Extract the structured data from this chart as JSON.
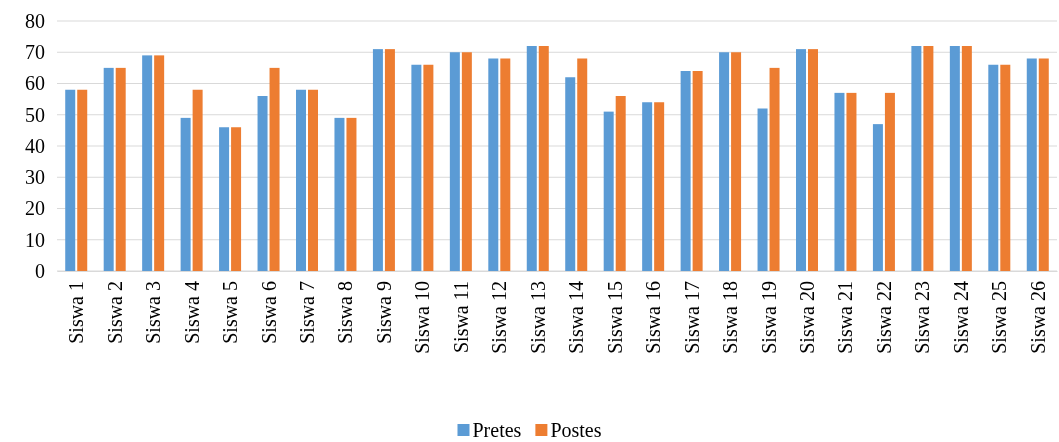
{
  "chart_data": {
    "type": "bar",
    "categories": [
      "Siswa 1",
      "Siswa 2",
      "Siswa 3",
      "Siswa 4",
      "Siswa 5",
      "Siswa 6",
      "Siswa 7",
      "Siswa 8",
      "Siswa 9",
      "Siswa 10",
      "Siswa 11",
      "Siswa 12",
      "Siswa 13",
      "Siswa 14",
      "Siswa 15",
      "Siswa 16",
      "Siswa 17",
      "Siswa 18",
      "Siswa 19",
      "Siswa 20",
      "Siswa 21",
      "Siswa 22",
      "Siswa 23",
      "Siswa 24",
      "Siswa 25",
      "Siswa 26"
    ],
    "series": [
      {
        "name": "Pretes",
        "color": "#5b9bd5",
        "values": [
          58,
          65,
          69,
          49,
          46,
          56,
          58,
          49,
          71,
          66,
          70,
          68,
          72,
          62,
          51,
          54,
          64,
          70,
          52,
          71,
          57,
          47,
          72,
          72,
          66,
          68
        ]
      },
      {
        "name": "Postes",
        "color": "#ed7d31",
        "values": [
          58,
          65,
          69,
          58,
          46,
          65,
          58,
          49,
          71,
          66,
          70,
          68,
          72,
          68,
          56,
          54,
          64,
          70,
          65,
          71,
          57,
          57,
          72,
          72,
          66,
          68
        ]
      }
    ],
    "ylim": [
      0,
      80
    ],
    "yticks": [
      0,
      10,
      20,
      30,
      40,
      50,
      60,
      70,
      80
    ],
    "grid": "y",
    "legend": "bottom"
  }
}
